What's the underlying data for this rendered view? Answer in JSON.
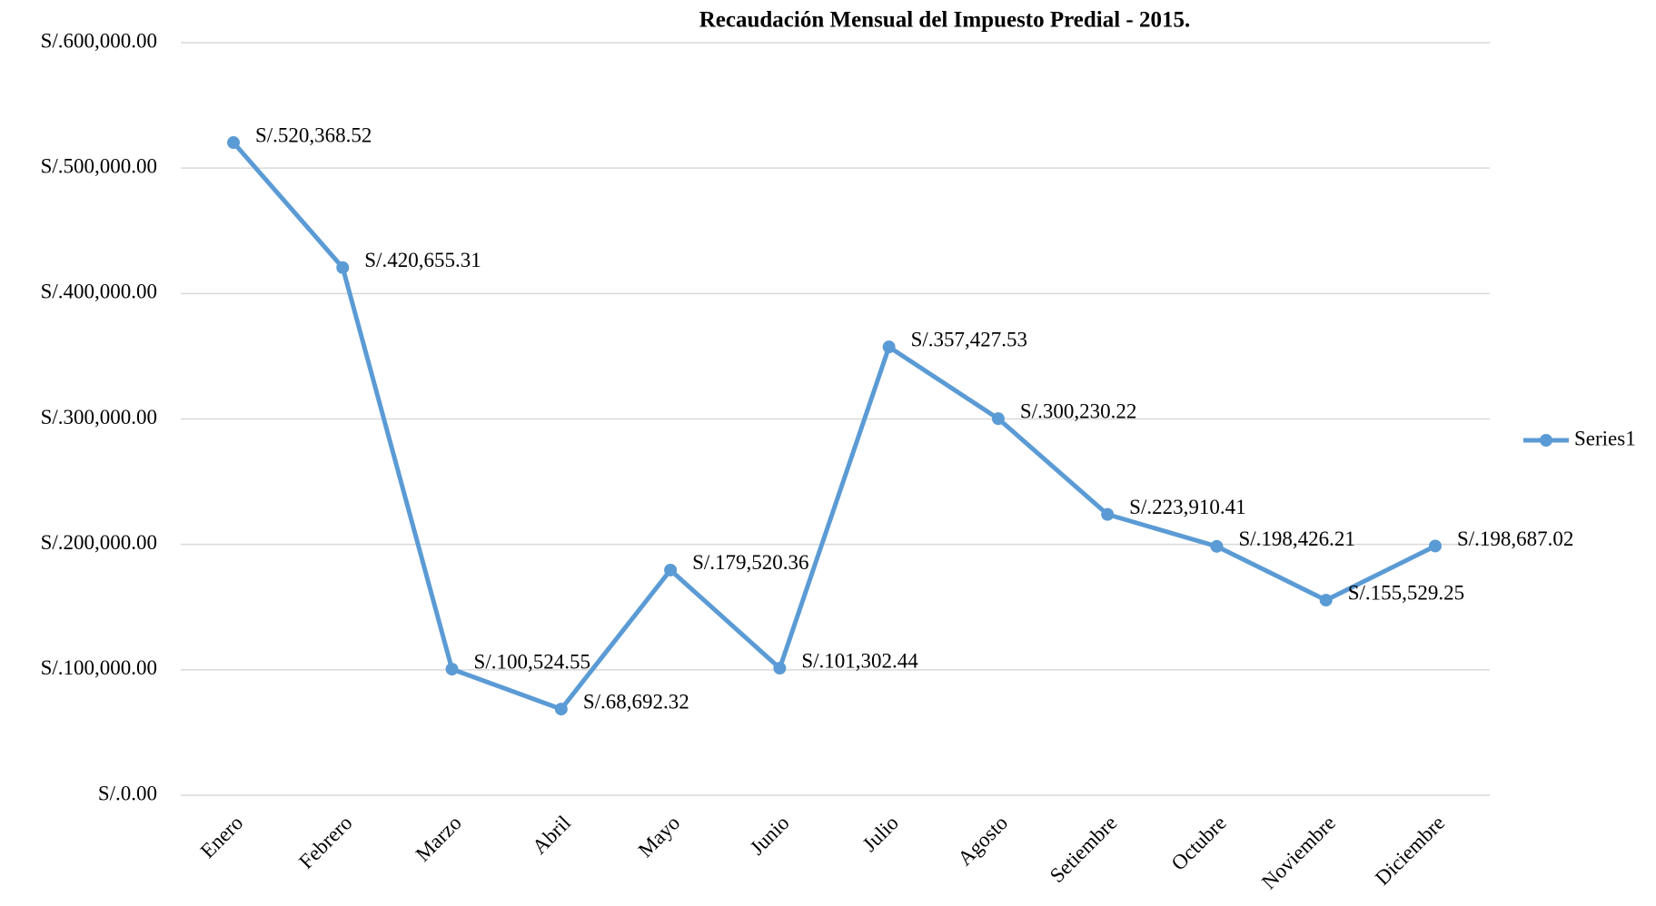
{
  "chart_data": {
    "type": "line",
    "title": "Recaudación Mensual del Impuesto Predial - 2015.",
    "categories": [
      "Enero",
      "Febrero",
      "Marzo",
      "Abril",
      "Mayo",
      "Junio",
      "Julio",
      "Agosto",
      "Setiembre",
      "Octubre",
      "Noviembre",
      "Diciembre"
    ],
    "series": [
      {
        "name": "Series1",
        "color": "#5b9bd5",
        "values": [
          520368.52,
          420655.31,
          100524.55,
          68692.32,
          179520.36,
          101302.44,
          357427.53,
          300230.22,
          223910.41,
          198426.21,
          155529.25,
          198687.02
        ],
        "value_labels": [
          "S/.520,368.52",
          "S/.420,655.31",
          "S/.100,524.55",
          "S/.68,692.32",
          "S/.179,520.36",
          "S/.101,302.44",
          "S/.357,427.53",
          "S/.300,230.22",
          "S/.223,910.41",
          "S/.198,426.21",
          "S/.155,529.25",
          "S/.198,687.02"
        ]
      }
    ],
    "ylim": [
      0,
      600000
    ],
    "yticks": [
      {
        "value": 0,
        "label": "S/.0.00"
      },
      {
        "value": 100000,
        "label": "S/.100,000.00"
      },
      {
        "value": 200000,
        "label": "S/.200,000.00"
      },
      {
        "value": 300000,
        "label": "S/.300,000.00"
      },
      {
        "value": 400000,
        "label": "S/.400,000.00"
      },
      {
        "value": 500000,
        "label": "S/.500,000.00"
      },
      {
        "value": 600000,
        "label": "S/.600,000.00"
      }
    ],
    "grid": true,
    "legend": "right"
  }
}
